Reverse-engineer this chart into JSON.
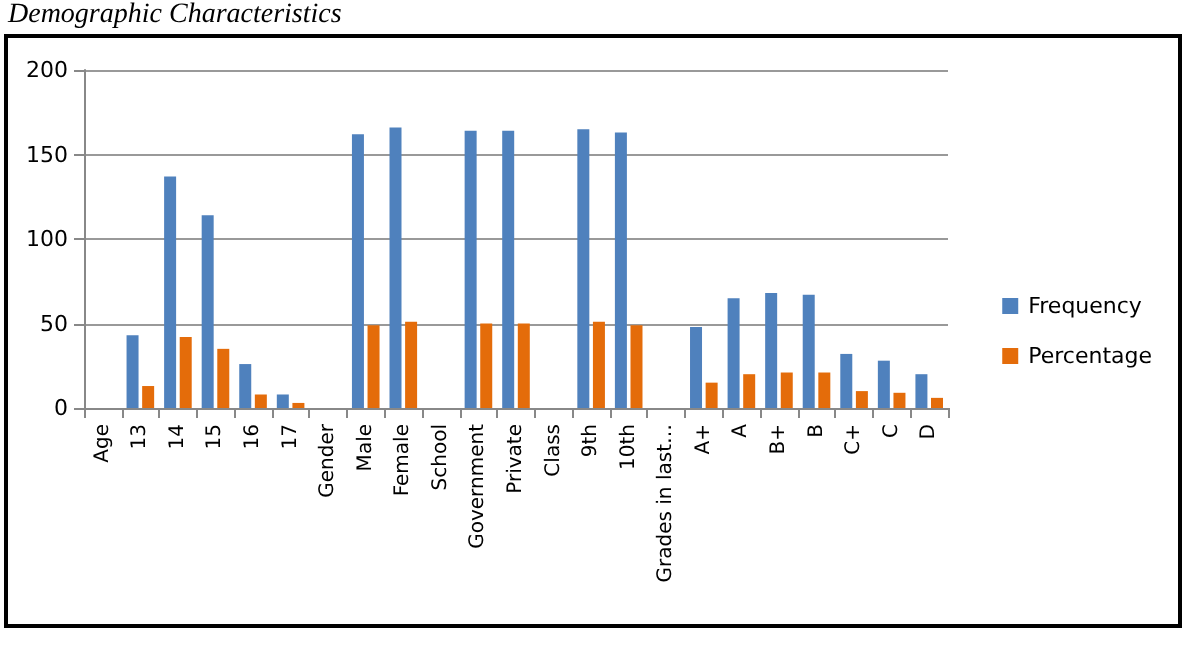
{
  "chart_data": {
    "type": "bar",
    "title": "Demographic Characteristics",
    "categories": [
      "Age",
      "13",
      "14",
      "15",
      "16",
      "17",
      "Gender",
      "Male",
      "Female",
      "School",
      "Government",
      "Private",
      "Class",
      "9th",
      "10th",
      "Grades in last…",
      "A+",
      "A",
      "B+",
      "B",
      "C+",
      "C",
      "D"
    ],
    "series": [
      {
        "name": "Frequency",
        "color": "#4f81bd",
        "values": [
          null,
          43,
          137,
          114,
          26,
          8,
          null,
          162,
          166,
          null,
          164,
          164,
          null,
          165,
          163,
          null,
          48,
          65,
          68,
          67,
          32,
          28,
          20
        ]
      },
      {
        "name": "Percentage",
        "color": "#e46c0a",
        "values": [
          null,
          13,
          42,
          35,
          8,
          3,
          null,
          49,
          51,
          null,
          50,
          50,
          null,
          51,
          49,
          null,
          15,
          20,
          21,
          21,
          10,
          9,
          6
        ]
      }
    ],
    "ylim": [
      0,
      200
    ],
    "yticks": [
      0,
      50,
      100,
      150,
      200
    ],
    "grid": "y",
    "legend": "right"
  }
}
